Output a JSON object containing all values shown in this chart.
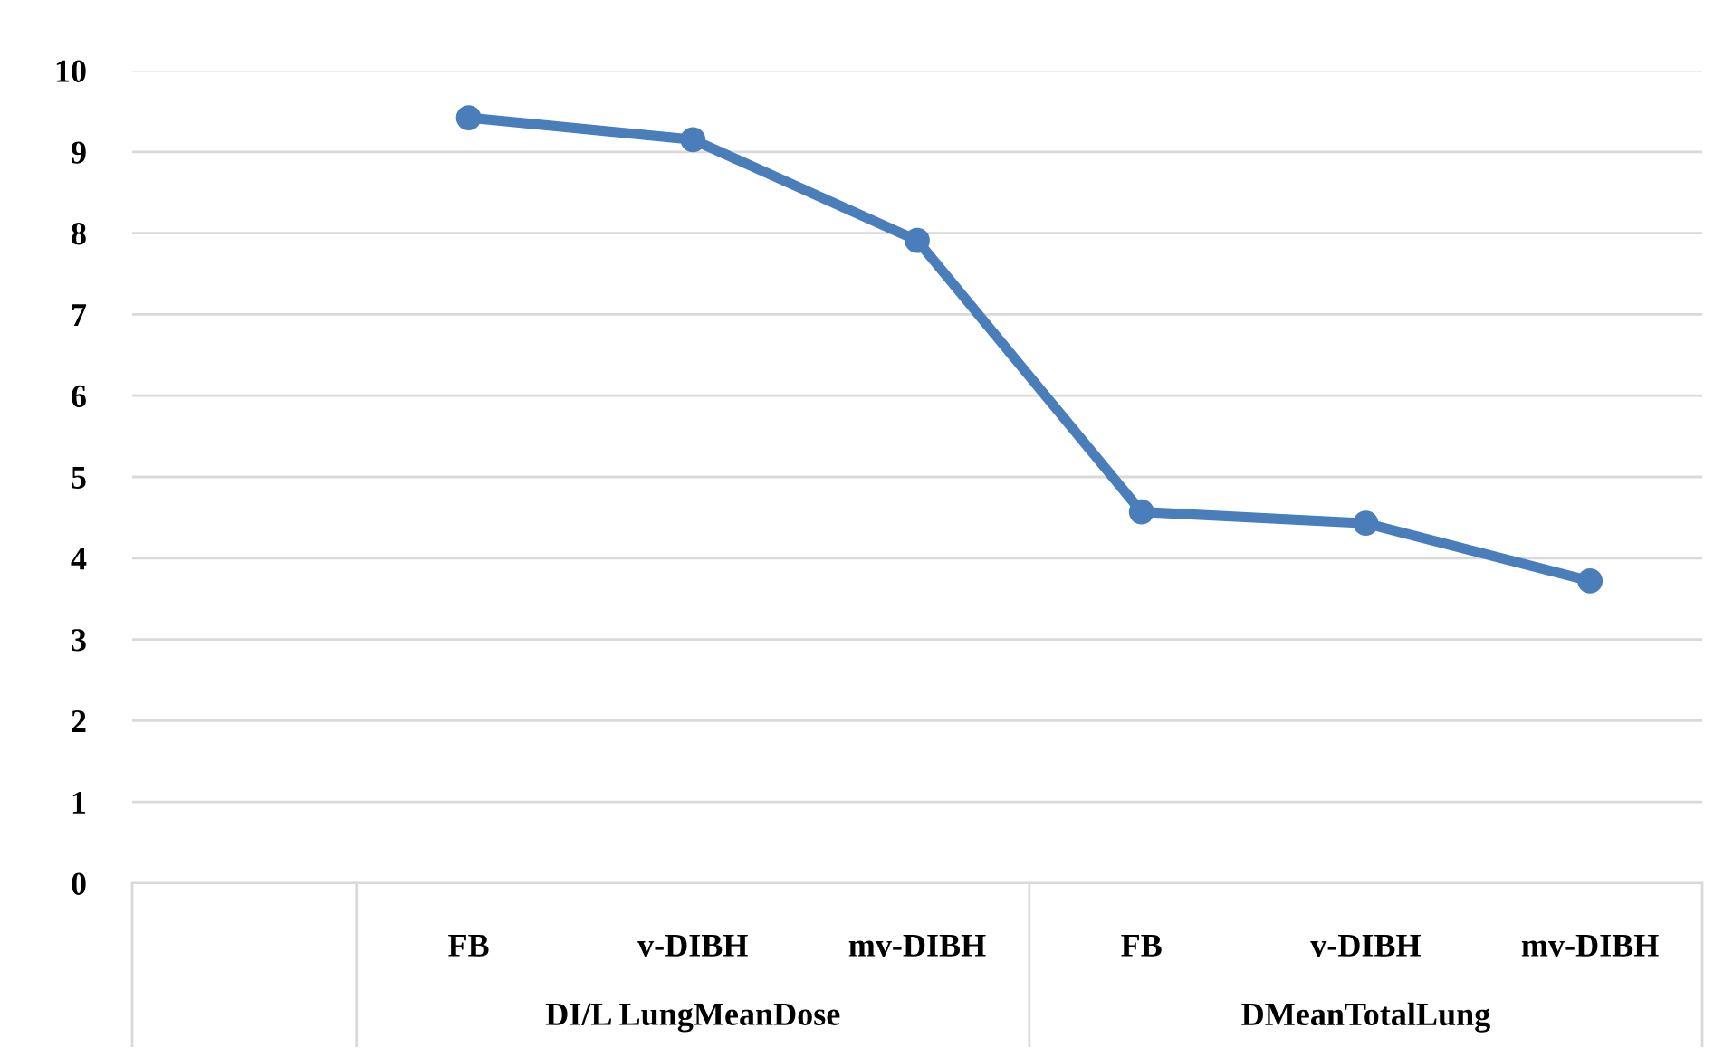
{
  "chart_data": {
    "type": "line",
    "categories": [
      null,
      "FB",
      "v-DIBH",
      "mv-DIBH",
      "FB",
      "v-DIBH",
      "mv-DIBH"
    ],
    "series": [
      {
        "color": "#4a7ebb",
        "values": [
          null,
          9.42,
          9.15,
          7.91,
          4.57,
          4.43,
          3.72
        ]
      }
    ],
    "ylim": [
      0,
      10
    ],
    "yticks": [
      0,
      1,
      2,
      3,
      4,
      5,
      6,
      7,
      8,
      9,
      10
    ],
    "grid": "y",
    "marker": "circle",
    "line_style": "solid",
    "legend": false,
    "annotations": [
      "DI/L LungMeanDose",
      "DMeanTotalLung"
    ]
  }
}
